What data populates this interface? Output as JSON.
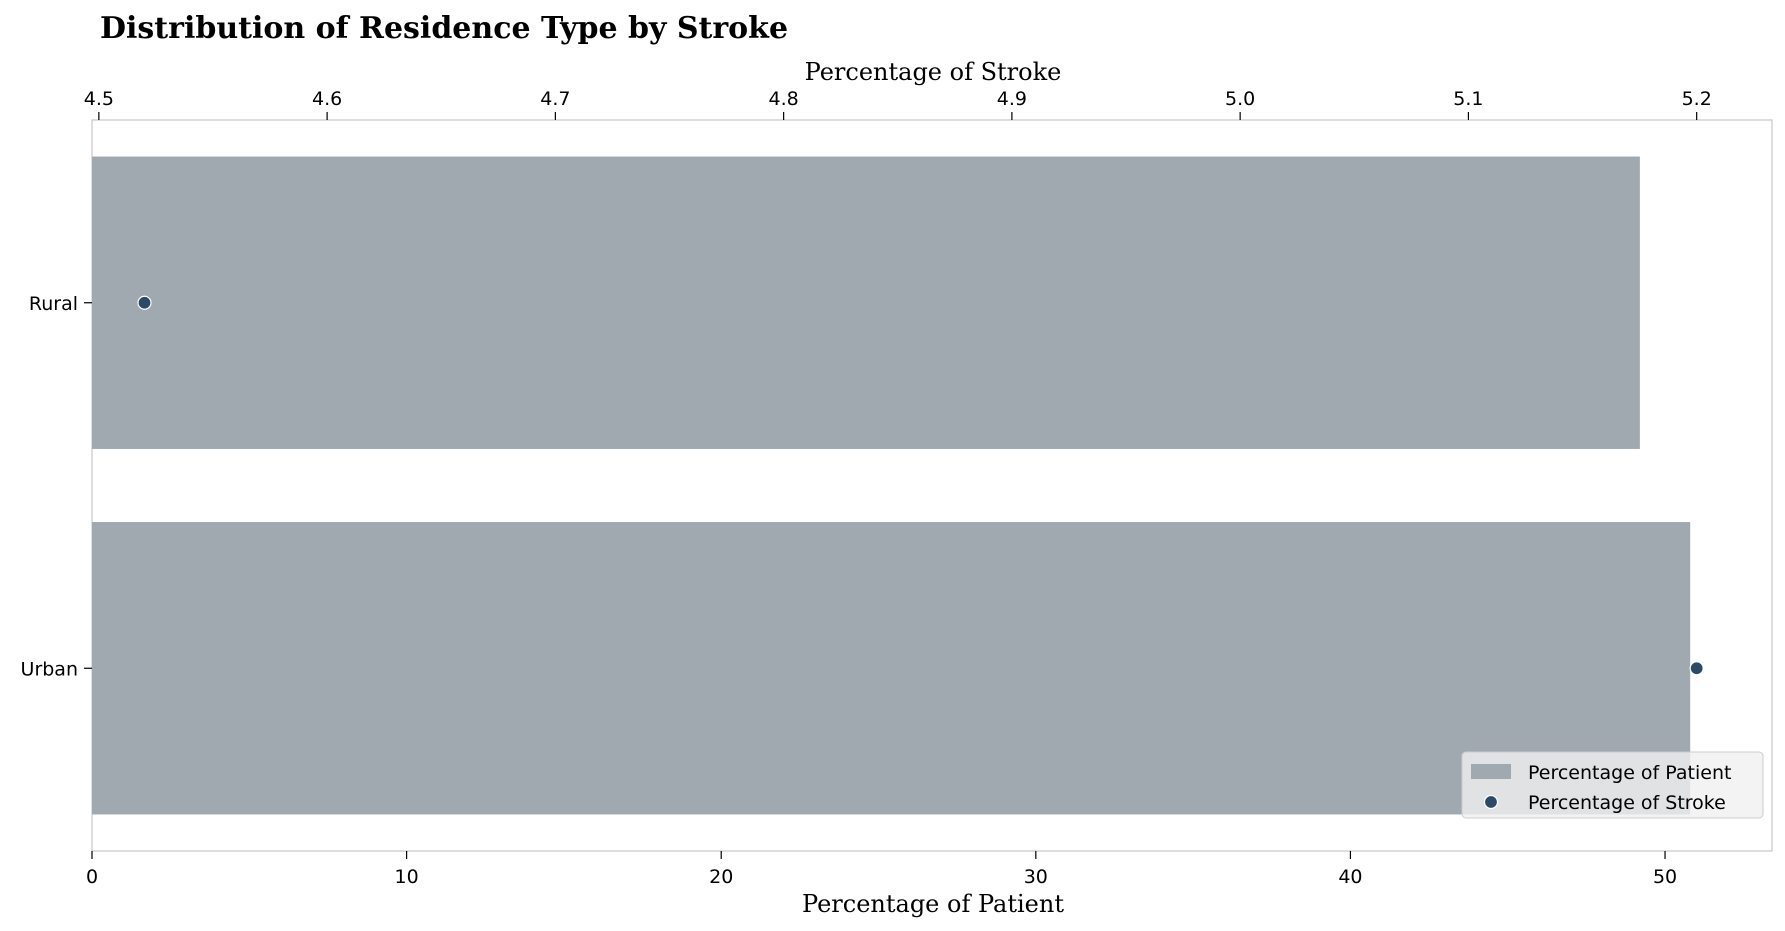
{
  "chart_data": {
    "type": "bar",
    "title": "Distribution of Residence Type by Stroke",
    "categories": [
      "Urban",
      "Rural"
    ],
    "series": [
      {
        "name": "Percentage of Patient",
        "kind": "bar",
        "axis": "bottom",
        "values": [
          50.8,
          49.2
        ],
        "color": "#a0a8b0"
      },
      {
        "name": "Percentage of Stroke",
        "kind": "scatter",
        "axis": "top",
        "values": [
          5.2,
          4.52
        ],
        "color": "#2c4a66"
      }
    ],
    "xlabel": "Percentage of Patient",
    "xlim": [
      0,
      53.4
    ],
    "xticks": [
      "0",
      "10",
      "20",
      "30",
      "40",
      "50"
    ],
    "x2label": "Percentage of Stroke",
    "x2lim": [
      4.497,
      5.233
    ],
    "x2ticks": [
      "4.5",
      "4.6",
      "4.7",
      "4.8",
      "4.9",
      "5.0",
      "5.1",
      "5.2"
    ],
    "grid": false,
    "legend": {
      "position": "bottom-right",
      "entries": [
        "Percentage of Patient",
        "Percentage of Stroke"
      ]
    }
  }
}
